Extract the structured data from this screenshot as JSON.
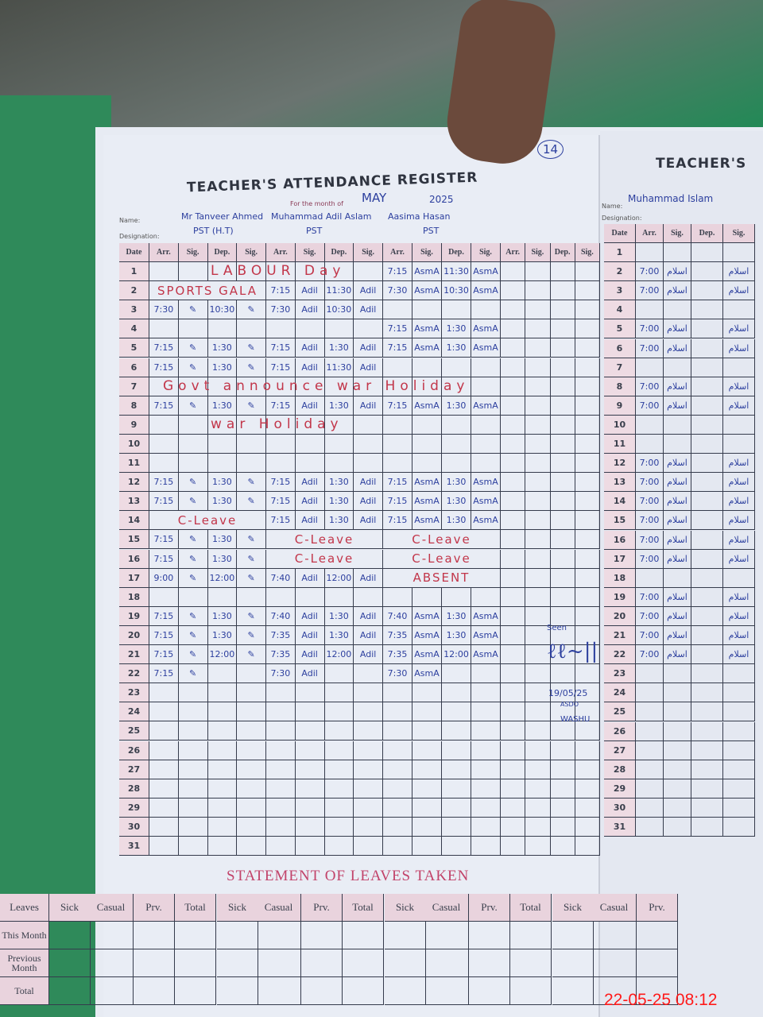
{
  "page_number": "14",
  "left_title": "TEACHER'S ATTENDANCE REGISTER",
  "right_title": "TEACHER'S",
  "month_label": "For the month of",
  "month": "MAY",
  "year": "2025",
  "name_label": "Name:",
  "designation_label": "Designation:",
  "columns": {
    "date": "Date",
    "arr": "Arr.",
    "sig": "Sig.",
    "dep": "Dep."
  },
  "teachers": [
    {
      "name": "Mr Tanveer Ahmed",
      "designation": "PST (H.T)",
      "sig": "✎"
    },
    {
      "name": "Muhammad Adil Aslam",
      "designation": "PST",
      "sig": "Adil"
    },
    {
      "name": "Aasima Hasan",
      "designation": "PST",
      "sig": "AsmA"
    },
    {
      "name": "",
      "designation": "",
      "sig": ""
    }
  ],
  "right_teacher": {
    "name": "Muhammad Islam",
    "designation": "",
    "sig": "اسلام"
  },
  "row_notes": [
    {
      "date": 1,
      "text": "LABOUR Day"
    },
    {
      "date": 7,
      "text": "Govt announce war Holiday"
    },
    {
      "date": 9,
      "text": "war Holiday"
    }
  ],
  "entries": {
    "t0": {
      "2": "SPORTS GALA",
      "3": [
        "7:30",
        "10:30"
      ],
      "5": [
        "7:15",
        "1:30"
      ],
      "6": [
        "7:15",
        "1:30"
      ],
      "8": [
        "7:15",
        "1:30"
      ],
      "12": [
        "7:15",
        "1:30"
      ],
      "13": [
        "7:15",
        "1:30"
      ],
      "14": "C-Leave",
      "15": [
        "7:15",
        "1:30"
      ],
      "16": [
        "7:15",
        "1:30"
      ],
      "17": [
        "9:00",
        "12:00"
      ],
      "19": [
        "7:15",
        "1:30"
      ],
      "20": [
        "7:15",
        "1:30"
      ],
      "21": [
        "7:15",
        "12:00"
      ],
      "22": [
        "7:15",
        ""
      ]
    },
    "t1": {
      "2": [
        "7:15",
        "11:30"
      ],
      "3": [
        "7:30",
        "10:30"
      ],
      "5": [
        "7:15",
        "1:30"
      ],
      "6": [
        "7:15",
        "11:30"
      ],
      "8": [
        "7:15",
        "1:30"
      ],
      "12": [
        "7:15",
        "1:30"
      ],
      "13": [
        "7:15",
        "1:30"
      ],
      "14": [
        "7:15",
        "1:30"
      ],
      "15": "C-Leave",
      "16": "C-Leave",
      "17": [
        "7:40",
        "12:00"
      ],
      "19": [
        "7:40",
        "1:30"
      ],
      "20": [
        "7:35",
        "1:30"
      ],
      "21": [
        "7:35",
        "12:00"
      ],
      "22": [
        "7:30",
        ""
      ]
    },
    "t2": {
      "1": [
        "7:15",
        "11:30"
      ],
      "2": [
        "7:30",
        "10:30"
      ],
      "4": [
        "7:15",
        "1:30"
      ],
      "5": [
        "7:15",
        "1:30"
      ],
      "8": [
        "7:15",
        "1:30"
      ],
      "12": [
        "7:15",
        "1:30"
      ],
      "13": [
        "7:15",
        "1:30"
      ],
      "14": [
        "7:15",
        "1:30"
      ],
      "15": "C-Leave",
      "16": "C-Leave",
      "17": "ABSENT",
      "19": [
        "7:40",
        "1:30"
      ],
      "20": [
        "7:35",
        "1:30"
      ],
      "21": [
        "7:35",
        "12:00"
      ],
      "22": [
        "7:30",
        ""
      ]
    },
    "right": {
      "2": "7:00",
      "3": "7:00",
      "5": "7:00",
      "6": "7:00",
      "8": "7:00",
      "9": "7:00",
      "12": "7:00",
      "13": "7:00",
      "14": "7:00",
      "15": "7:00",
      "16": "7:00",
      "17": "7:00",
      "19": "7:00",
      "20": "7:00",
      "21": "7:00",
      "22": "7:00"
    }
  },
  "verification": {
    "label": "Seen",
    "date": "19/05/25",
    "role": "ASDO",
    "place": "WASHU"
  },
  "leaves": {
    "title": "STATEMENT OF LEAVES TAKEN",
    "row_header": "Leaves",
    "cols": [
      "Sick",
      "Casual",
      "Prv.",
      "Total"
    ],
    "rows": [
      "This Month",
      "Previous Month",
      "Total"
    ]
  },
  "timestamp": "22-05-25  08:12",
  "colors": {
    "ink_blue": "#2c3f9e",
    "ink_red": "#c2364a",
    "rule_pink": "#d07a95"
  }
}
